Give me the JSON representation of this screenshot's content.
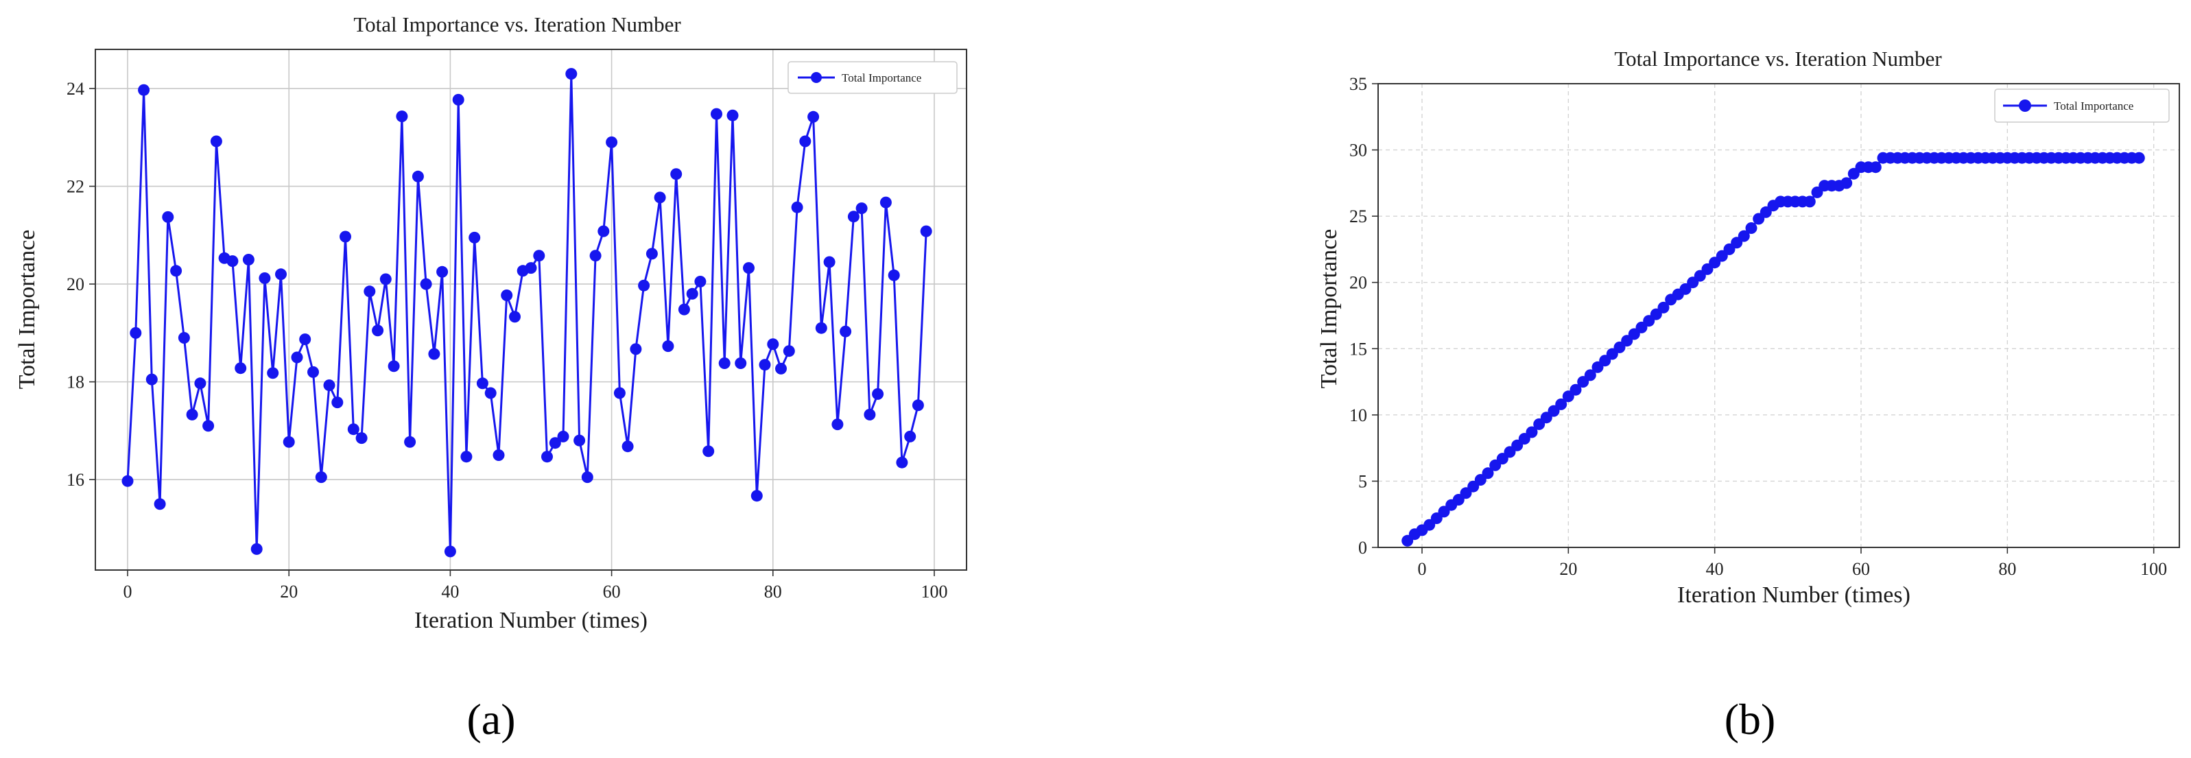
{
  "colors": {
    "series": "#1616ee",
    "grid_a": "#c8c8c8",
    "grid_b": "#d4d4d4",
    "axis": "#333333"
  },
  "panels": [
    {
      "label": "(a)"
    },
    {
      "label": "(b)"
    }
  ],
  "chart_data": [
    {
      "type": "line",
      "title": "Total Importance vs. Iteration Number",
      "xlabel": "Iteration Number (times)",
      "ylabel": "Total Importance",
      "xlim": [
        -4,
        104
      ],
      "ylim": [
        14.15,
        24.8
      ],
      "xticks": [
        0,
        20,
        40,
        60,
        80,
        100
      ],
      "yticks": [
        16,
        18,
        20,
        22,
        24
      ],
      "grid": "solid",
      "legend": "top-right",
      "series": [
        {
          "name": "Total Importance",
          "marker": "circle",
          "x": [
            0,
            1,
            2,
            3,
            4,
            5,
            6,
            7,
            8,
            9,
            10,
            11,
            12,
            13,
            14,
            15,
            16,
            17,
            18,
            19,
            20,
            21,
            22,
            23,
            24,
            25,
            26,
            27,
            28,
            29,
            30,
            31,
            32,
            33,
            34,
            35,
            36,
            37,
            38,
            39,
            40,
            41,
            42,
            43,
            44,
            45,
            46,
            47,
            48,
            49,
            50,
            51,
            52,
            53,
            54,
            55,
            56,
            57,
            58,
            59,
            60,
            61,
            62,
            63,
            64,
            65,
            66,
            67,
            68,
            69,
            70,
            71,
            72,
            73,
            74,
            75,
            76,
            77,
            78,
            79,
            80,
            81,
            82,
            83,
            84,
            85,
            86,
            87,
            88,
            89,
            90,
            91,
            92,
            93,
            94,
            95,
            96,
            97,
            98,
            99
          ],
          "y": [
            15.97,
            19.0,
            23.97,
            18.05,
            15.5,
            21.37,
            20.27,
            18.9,
            17.33,
            17.97,
            17.1,
            22.92,
            20.53,
            20.47,
            18.28,
            20.5,
            14.58,
            20.12,
            18.18,
            20.2,
            16.77,
            18.5,
            18.87,
            18.2,
            16.05,
            17.93,
            17.58,
            20.97,
            17.03,
            16.85,
            19.85,
            19.05,
            20.1,
            18.32,
            23.43,
            16.77,
            22.2,
            20.0,
            18.57,
            20.25,
            14.53,
            23.77,
            16.47,
            20.95,
            17.97,
            17.77,
            16.5,
            19.77,
            19.33,
            20.27,
            20.33,
            20.58,
            16.47,
            16.75,
            16.88,
            24.3,
            16.8,
            16.05,
            20.58,
            21.08,
            22.9,
            17.77,
            16.68,
            18.67,
            19.97,
            20.62,
            21.77,
            18.73,
            22.25,
            19.48,
            19.8,
            20.05,
            16.58,
            23.48,
            18.38,
            23.45,
            18.38,
            20.33,
            15.67,
            18.35,
            18.77,
            18.27,
            18.63,
            21.57,
            22.92,
            23.42,
            19.1,
            20.45,
            17.13,
            19.03,
            21.38,
            21.55,
            17.33,
            17.75,
            21.67,
            20.18,
            16.35,
            16.88,
            17.52,
            21.08
          ]
        }
      ]
    },
    {
      "type": "line",
      "title": "Total Importance vs. Iteration Number",
      "xlabel": "Iteration Number (times)",
      "ylabel": "Total Importance",
      "xlim": [
        -6,
        103.5
      ],
      "ylim": [
        0,
        35
      ],
      "xticks": [
        0,
        20,
        40,
        60,
        80,
        100
      ],
      "yticks": [
        0,
        5,
        10,
        15,
        20,
        25,
        30,
        35
      ],
      "grid": "dashed",
      "legend": "top-right",
      "series": [
        {
          "name": "Total Importance",
          "marker": "circle",
          "x": [
            -2,
            -1,
            0,
            1,
            2,
            3,
            4,
            5,
            6,
            7,
            8,
            9,
            10,
            11,
            12,
            13,
            14,
            15,
            16,
            17,
            18,
            19,
            20,
            21,
            22,
            23,
            24,
            25,
            26,
            27,
            28,
            29,
            30,
            31,
            32,
            33,
            34,
            35,
            36,
            37,
            38,
            39,
            40,
            41,
            42,
            43,
            44,
            45,
            46,
            47,
            48,
            49,
            50,
            51,
            52,
            53,
            54,
            55,
            56,
            57,
            58,
            59,
            60,
            61,
            62,
            63,
            64,
            65,
            66,
            67,
            68,
            69,
            70,
            71,
            72,
            73,
            74,
            75,
            76,
            77,
            78,
            79,
            80,
            81,
            82,
            83,
            84,
            85,
            86,
            87,
            88,
            89,
            90,
            91,
            92,
            93,
            94,
            95,
            96,
            97,
            98
          ],
          "y": [
            0.5,
            1.0,
            1.3,
            1.7,
            2.2,
            2.7,
            3.2,
            3.6,
            4.1,
            4.6,
            5.1,
            5.6,
            6.2,
            6.7,
            7.2,
            7.7,
            8.2,
            8.7,
            9.3,
            9.8,
            10.3,
            10.8,
            11.4,
            11.9,
            12.5,
            13.0,
            13.6,
            14.1,
            14.6,
            15.1,
            15.6,
            16.1,
            16.6,
            17.1,
            17.6,
            18.1,
            18.7,
            19.1,
            19.5,
            20.0,
            20.5,
            21.0,
            21.5,
            22.0,
            22.5,
            23.0,
            23.5,
            24.1,
            24.8,
            25.3,
            25.8,
            26.1,
            26.1,
            26.1,
            26.1,
            26.1,
            26.8,
            27.3,
            27.3,
            27.3,
            27.5,
            28.2,
            28.7,
            28.7,
            28.7,
            29.4,
            29.4,
            29.4,
            29.4,
            29.4,
            29.4,
            29.4,
            29.4,
            29.4,
            29.4,
            29.4,
            29.4,
            29.4,
            29.4,
            29.4,
            29.4,
            29.4,
            29.4,
            29.4,
            29.4,
            29.4,
            29.4,
            29.4,
            29.4,
            29.4,
            29.4,
            29.4,
            29.4,
            29.4,
            29.4,
            29.4,
            29.4,
            29.4,
            29.4,
            29.4,
            29.4
          ]
        }
      ]
    }
  ]
}
